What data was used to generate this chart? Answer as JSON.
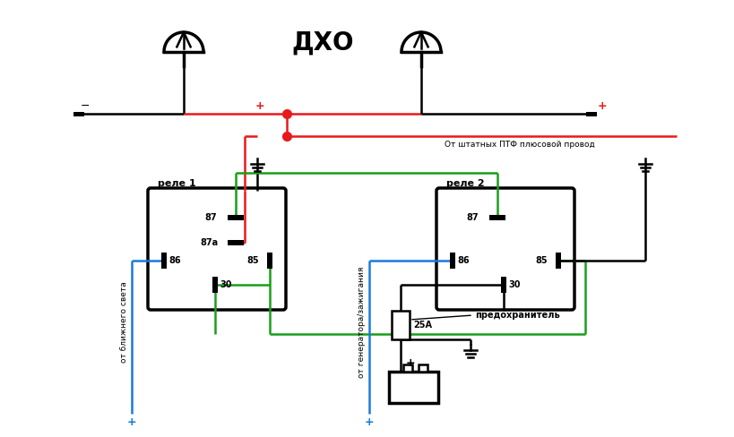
{
  "title": "ДХО",
  "bg_color": "#ffffff",
  "black": "#000000",
  "red": "#e8191a",
  "green": "#1a9e1a",
  "blue": "#1a7adb",
  "relay1_label": "реле 1",
  "relay2_label": "реле 2",
  "ptf_label": "От штатных ПТФ плюсовой провод",
  "fuse_label": "предохранитель",
  "fuse_value": "25А",
  "left_label": "от ближнего света",
  "bottom_label": "от генератора/зажигания",
  "plus": "+",
  "minus": "−"
}
